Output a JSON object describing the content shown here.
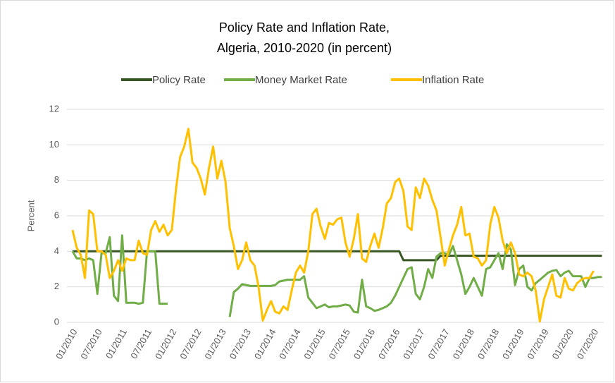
{
  "chart_data": {
    "type": "line",
    "title": "Policy Rate and Inflation Rate,",
    "subtitle": "Algeria, 2010-2020 (in percent)",
    "y_label": "Percent",
    "categories": [
      "01/2010",
      null,
      null,
      null,
      null,
      null,
      "07/2010",
      null,
      null,
      null,
      null,
      null,
      "01/2011",
      null,
      null,
      null,
      null,
      null,
      "07/2011",
      null,
      null,
      null,
      null,
      null,
      "01/2012",
      null,
      null,
      null,
      null,
      null,
      "07/2012",
      null,
      null,
      null,
      null,
      null,
      "01/2013",
      null,
      null,
      null,
      null,
      null,
      "07/2013",
      null,
      null,
      null,
      null,
      null,
      "01/2014",
      null,
      null,
      null,
      null,
      null,
      "07/2014",
      null,
      null,
      null,
      null,
      null,
      "01/2015",
      null,
      null,
      null,
      null,
      null,
      "07/2015",
      null,
      null,
      null,
      null,
      null,
      "01/2016",
      null,
      null,
      null,
      null,
      null,
      "07/2016",
      null,
      null,
      null,
      null,
      null,
      "01/2017",
      null,
      null,
      null,
      null,
      null,
      "07/2017",
      null,
      null,
      null,
      null,
      null,
      "01/2018",
      null,
      null,
      null,
      null,
      null,
      "07/2018",
      null,
      null,
      null,
      null,
      null,
      "01/2019",
      null,
      null,
      null,
      null,
      null,
      "07/2019",
      null,
      null,
      null,
      null,
      null,
      "01/2020",
      null,
      null,
      null,
      null,
      null,
      "07/2020",
      null,
      null
    ],
    "series": [
      {
        "name": "Policy Rate",
        "color": "#375623",
        "values": [
          4,
          4,
          4,
          4,
          4,
          4,
          4,
          4,
          4,
          4,
          4,
          4,
          4,
          4,
          4,
          4,
          4,
          4,
          4,
          4,
          4,
          4,
          4,
          4,
          4,
          4,
          4,
          4,
          4,
          4,
          4,
          4,
          4,
          4,
          4,
          4,
          4,
          4,
          4,
          4,
          4,
          4,
          4,
          4,
          4,
          4,
          4,
          4,
          4,
          4,
          4,
          4,
          4,
          4,
          4,
          4,
          4,
          4,
          4,
          4,
          4,
          4,
          4,
          4,
          4,
          4,
          4,
          4,
          4,
          4,
          4,
          4,
          4,
          4,
          4,
          4,
          4,
          4,
          4,
          4,
          3.5,
          3.5,
          3.5,
          3.5,
          3.5,
          3.5,
          3.5,
          3.5,
          3.5,
          3.75,
          3.75,
          3.75,
          3.75,
          3.75,
          3.75,
          3.75,
          3.75,
          3.75,
          3.75,
          3.75,
          3.75,
          3.75,
          3.75,
          3.75,
          3.75,
          3.75,
          3.75,
          3.75,
          3.75,
          3.75,
          3.75,
          3.75,
          3.75,
          3.75,
          3.75,
          3.75,
          3.75,
          3.75,
          3.75,
          3.75,
          3.75,
          3.75,
          3.75,
          3.75,
          3.75,
          3.75,
          3.75,
          3.75,
          3.75
        ]
      },
      {
        "name": "Money Market Rate",
        "color": "#70ad47",
        "values": [
          4.0,
          3.6,
          3.6,
          3.5,
          3.6,
          3.5,
          1.6,
          3.9,
          3.9,
          4.8,
          1.5,
          1.2,
          4.9,
          1.1,
          1.1,
          1.1,
          1.05,
          1.1,
          4.0,
          4.0,
          4.0,
          1.05,
          1.05,
          1.05,
          null,
          null,
          null,
          null,
          null,
          null,
          null,
          null,
          null,
          null,
          null,
          null,
          null,
          null,
          0.3,
          1.7,
          1.9,
          2.15,
          2.1,
          2.05,
          2.05,
          2.05,
          2.05,
          2.05,
          2.05,
          2.1,
          2.3,
          2.35,
          2.4,
          2.4,
          2.4,
          2.4,
          2.6,
          1.4,
          1.1,
          0.8,
          0.9,
          1.0,
          0.85,
          0.9,
          0.9,
          0.95,
          1.0,
          0.95,
          0.6,
          0.55,
          2.4,
          0.9,
          0.8,
          0.65,
          0.7,
          0.8,
          0.9,
          1.1,
          1.5,
          2.0,
          2.5,
          3.0,
          3.1,
          1.6,
          1.3,
          2.0,
          3.0,
          2.5,
          3.7,
          3.9,
          3.9,
          3.8,
          4.3,
          3.5,
          2.7,
          1.6,
          2.0,
          2.5,
          2.0,
          1.5,
          3.0,
          3.1,
          3.5,
          3.9,
          3.0,
          4.4,
          4.1,
          2.1,
          3.0,
          3.2,
          2.0,
          1.8,
          2.2,
          2.4,
          2.6,
          2.8,
          2.9,
          2.95,
          2.6,
          2.8,
          2.9,
          2.6,
          2.6,
          2.6,
          2.0,
          2.5,
          2.5,
          2.55,
          2.55
        ]
      },
      {
        "name": "Inflation Rate",
        "color": "#ffc000",
        "values": [
          5.2,
          4.2,
          3.8,
          2.5,
          6.3,
          6.1,
          4.0,
          4.0,
          3.8,
          2.5,
          2.9,
          3.5,
          2.9,
          3.6,
          3.5,
          3.5,
          4.6,
          3.9,
          3.8,
          5.2,
          5.7,
          5.1,
          5.5,
          4.9,
          5.2,
          7.5,
          9.3,
          9.9,
          10.9,
          9.0,
          8.7,
          8.1,
          7.2,
          8.7,
          9.9,
          8.1,
          9.1,
          7.9,
          5.3,
          4.3,
          3.0,
          3.5,
          4.5,
          3.5,
          3.2,
          2.0,
          0.1,
          0.7,
          1.2,
          0.6,
          0.5,
          0.9,
          0.7,
          1.8,
          2.8,
          3.2,
          2.8,
          4.0,
          6.1,
          6.4,
          5.4,
          4.7,
          5.6,
          5.5,
          5.8,
          5.9,
          4.5,
          3.7,
          4.7,
          6.1,
          3.6,
          3.4,
          4.3,
          5.0,
          4.2,
          5.3,
          6.7,
          7.0,
          7.9,
          8.1,
          7.4,
          5.4,
          5.2,
          7.6,
          7.0,
          8.1,
          7.7,
          6.9,
          6.3,
          4.8,
          3.2,
          4.1,
          4.9,
          5.5,
          6.5,
          4.9,
          5.0,
          3.7,
          3.6,
          3.2,
          3.5,
          5.5,
          6.5,
          5.9,
          4.6,
          3.9,
          4.5,
          3.9,
          2.7,
          2.6,
          2.8,
          2.6,
          1.8,
          0.05,
          1.3,
          2.0,
          2.7,
          1.5,
          1.4,
          2.5,
          1.9,
          1.8,
          2.2,
          2.4,
          2.5,
          2.5,
          2.9,
          null,
          null
        ]
      }
    ],
    "ylim": [
      0,
      12
    ],
    "yticks": [
      0,
      2,
      4,
      6,
      8,
      10,
      12
    ],
    "grid": true,
    "legend": "top"
  }
}
